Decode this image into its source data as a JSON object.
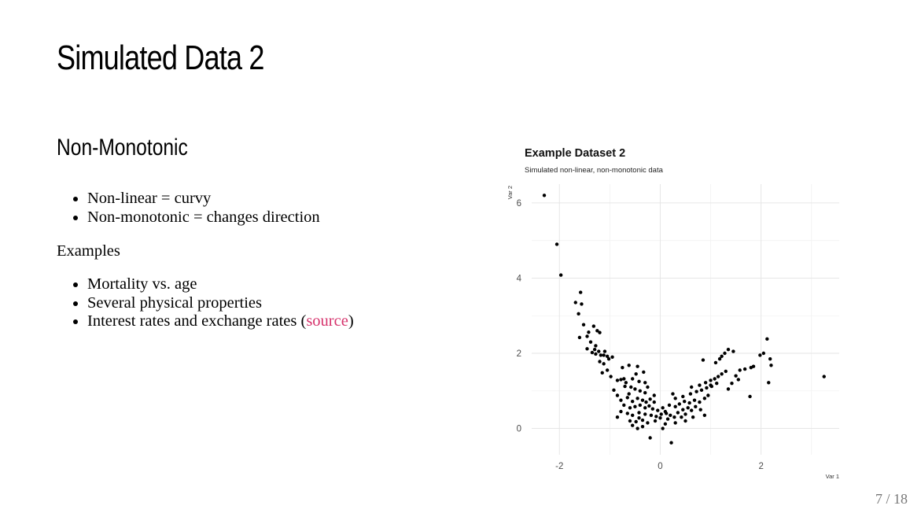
{
  "slide": {
    "title": "Simulated Data 2",
    "heading": "Non-Monotonic",
    "bullets_1": [
      "Non-linear = curvy",
      "Non-monotonic = changes direction"
    ],
    "examples_label": "Examples",
    "bullets_2": [
      "Mortality vs. age",
      "Several physical properties"
    ],
    "bullet_3_text": "Interest rates and exchange rates (",
    "bullet_3_link": "source",
    "bullet_3_close": ")",
    "page_number": "7 / 18",
    "link_color": "#d6336c"
  },
  "chart_data": {
    "type": "scatter",
    "title": "Example Dataset 2",
    "subtitle": "Simulated non-linear, non-monotonic data",
    "xlabel": "Var 1",
    "ylabel": "Var 2",
    "xlim": [
      -2.55,
      3.55
    ],
    "ylim": [
      -0.7,
      6.5
    ],
    "xticks": [
      -2,
      0,
      2
    ],
    "yticks": [
      0,
      2,
      4,
      6
    ],
    "grid": true,
    "point_color": "#000000",
    "points": [
      [
        -2.3,
        6.2
      ],
      [
        -2.05,
        4.9
      ],
      [
        -1.97,
        4.08
      ],
      [
        -1.68,
        3.35
      ],
      [
        -1.58,
        3.62
      ],
      [
        -1.56,
        3.31
      ],
      [
        -1.62,
        3.05
      ],
      [
        -1.52,
        2.76
      ],
      [
        -1.42,
        2.56
      ],
      [
        -1.32,
        2.72
      ],
      [
        -1.25,
        2.6
      ],
      [
        -1.2,
        2.55
      ],
      [
        -1.45,
        2.45
      ],
      [
        -1.6,
        2.42
      ],
      [
        -1.38,
        2.3
      ],
      [
        -1.28,
        2.2
      ],
      [
        -1.3,
        2.1
      ],
      [
        -1.22,
        2.05
      ],
      [
        -1.35,
        2.02
      ],
      [
        -1.28,
        1.98
      ],
      [
        -1.18,
        1.95
      ],
      [
        -1.45,
        2.12
      ],
      [
        -1.12,
        1.95
      ],
      [
        -1.05,
        1.92
      ],
      [
        -1.1,
        2.05
      ],
      [
        -1.02,
        1.85
      ],
      [
        -0.95,
        1.9
      ],
      [
        -1.2,
        1.78
      ],
      [
        -1.12,
        1.72
      ],
      [
        -1.05,
        1.55
      ],
      [
        -1.15,
        1.48
      ],
      [
        -0.98,
        1.38
      ],
      [
        -0.85,
        1.28
      ],
      [
        -0.75,
        1.62
      ],
      [
        -0.62,
        1.68
      ],
      [
        -0.45,
        1.65
      ],
      [
        -0.33,
        1.5
      ],
      [
        -0.72,
        1.32
      ],
      [
        -0.55,
        1.32
      ],
      [
        -0.42,
        1.25
      ],
      [
        -0.3,
        1.22
      ],
      [
        -0.25,
        1.1
      ],
      [
        -0.68,
        1.22
      ],
      [
        -0.78,
        1.3
      ],
      [
        -0.58,
        1.1
      ],
      [
        -0.5,
        1.05
      ],
      [
        -0.4,
        1.0
      ],
      [
        -0.3,
        0.95
      ],
      [
        -0.92,
        1.02
      ],
      [
        -0.85,
        0.88
      ],
      [
        -0.78,
        0.75
      ],
      [
        -0.65,
        0.82
      ],
      [
        -0.55,
        0.72
      ],
      [
        -0.45,
        0.8
      ],
      [
        -0.35,
        0.75
      ],
      [
        -0.28,
        0.7
      ],
      [
        -0.2,
        0.78
      ],
      [
        -0.12,
        0.7
      ],
      [
        -0.72,
        0.62
      ],
      [
        -0.6,
        0.55
      ],
      [
        -0.5,
        0.58
      ],
      [
        -0.4,
        0.62
      ],
      [
        -0.3,
        0.55
      ],
      [
        -0.22,
        0.6
      ],
      [
        -0.15,
        0.52
      ],
      [
        -0.05,
        0.48
      ],
      [
        0.05,
        0.55
      ],
      [
        0.1,
        0.45
      ],
      [
        -0.78,
        0.45
      ],
      [
        -0.65,
        0.4
      ],
      [
        -0.55,
        0.35
      ],
      [
        -0.42,
        0.42
      ],
      [
        -0.3,
        0.38
      ],
      [
        -0.18,
        0.35
      ],
      [
        -0.08,
        0.32
      ],
      [
        0.02,
        0.38
      ],
      [
        0.12,
        0.4
      ],
      [
        0.2,
        0.35
      ],
      [
        -0.85,
        0.3
      ],
      [
        -0.6,
        0.2
      ],
      [
        -0.48,
        0.18
      ],
      [
        -0.35,
        0.22
      ],
      [
        -0.25,
        0.15
      ],
      [
        -0.1,
        0.2
      ],
      [
        0.0,
        0.28
      ],
      [
        0.15,
        0.25
      ],
      [
        0.28,
        0.3
      ],
      [
        -0.55,
        0.08
      ],
      [
        -0.45,
        0.0
      ],
      [
        -0.2,
        -0.25
      ],
      [
        0.05,
        0.0
      ],
      [
        0.22,
        -0.38
      ],
      [
        0.1,
        0.12
      ],
      [
        0.3,
        0.15
      ],
      [
        0.35,
        0.42
      ],
      [
        0.45,
        0.5
      ],
      [
        0.5,
        0.38
      ],
      [
        0.55,
        0.55
      ],
      [
        0.62,
        0.48
      ],
      [
        0.7,
        0.58
      ],
      [
        0.8,
        0.5
      ],
      [
        0.88,
        0.35
      ],
      [
        0.3,
        0.58
      ],
      [
        0.38,
        0.65
      ],
      [
        0.48,
        0.72
      ],
      [
        0.58,
        0.68
      ],
      [
        0.68,
        0.75
      ],
      [
        0.78,
        0.7
      ],
      [
        0.88,
        0.8
      ],
      [
        0.95,
        0.88
      ],
      [
        0.3,
        0.8
      ],
      [
        0.45,
        0.85
      ],
      [
        0.6,
        0.92
      ],
      [
        0.72,
        0.98
      ],
      [
        0.82,
        1.02
      ],
      [
        0.92,
        1.08
      ],
      [
        1.02,
        1.12
      ],
      [
        0.62,
        1.1
      ],
      [
        0.78,
        1.15
      ],
      [
        0.9,
        1.22
      ],
      [
        1.0,
        1.28
      ],
      [
        1.08,
        1.32
      ],
      [
        1.15,
        1.38
      ],
      [
        1.22,
        1.45
      ],
      [
        1.3,
        1.52
      ],
      [
        1.12,
        1.2
      ],
      [
        1.0,
        1.15
      ],
      [
        0.85,
        1.82
      ],
      [
        1.1,
        1.75
      ],
      [
        1.18,
        1.85
      ],
      [
        1.22,
        1.92
      ],
      [
        1.28,
        2.0
      ],
      [
        1.35,
        2.1
      ],
      [
        1.45,
        2.05
      ],
      [
        1.5,
        1.4
      ],
      [
        1.58,
        1.55
      ],
      [
        1.68,
        1.58
      ],
      [
        1.8,
        1.62
      ],
      [
        1.85,
        1.65
      ],
      [
        1.98,
        1.95
      ],
      [
        2.05,
        2.0
      ],
      [
        2.12,
        2.38
      ],
      [
        2.18,
        1.85
      ],
      [
        2.2,
        1.68
      ],
      [
        2.15,
        1.22
      ],
      [
        1.78,
        0.85
      ],
      [
        1.35,
        1.05
      ],
      [
        1.42,
        1.2
      ],
      [
        1.55,
        1.3
      ],
      [
        3.25,
        1.38
      ],
      [
        -0.42,
        0.28
      ],
      [
        -0.12,
        0.88
      ],
      [
        0.18,
        0.62
      ],
      [
        0.25,
        0.92
      ],
      [
        -0.62,
        0.92
      ],
      [
        -0.7,
        1.12
      ],
      [
        -0.48,
        1.45
      ],
      [
        -0.35,
        0.05
      ],
      [
        0.42,
        0.3
      ],
      [
        0.65,
        0.3
      ],
      [
        0.5,
        0.2
      ]
    ]
  }
}
